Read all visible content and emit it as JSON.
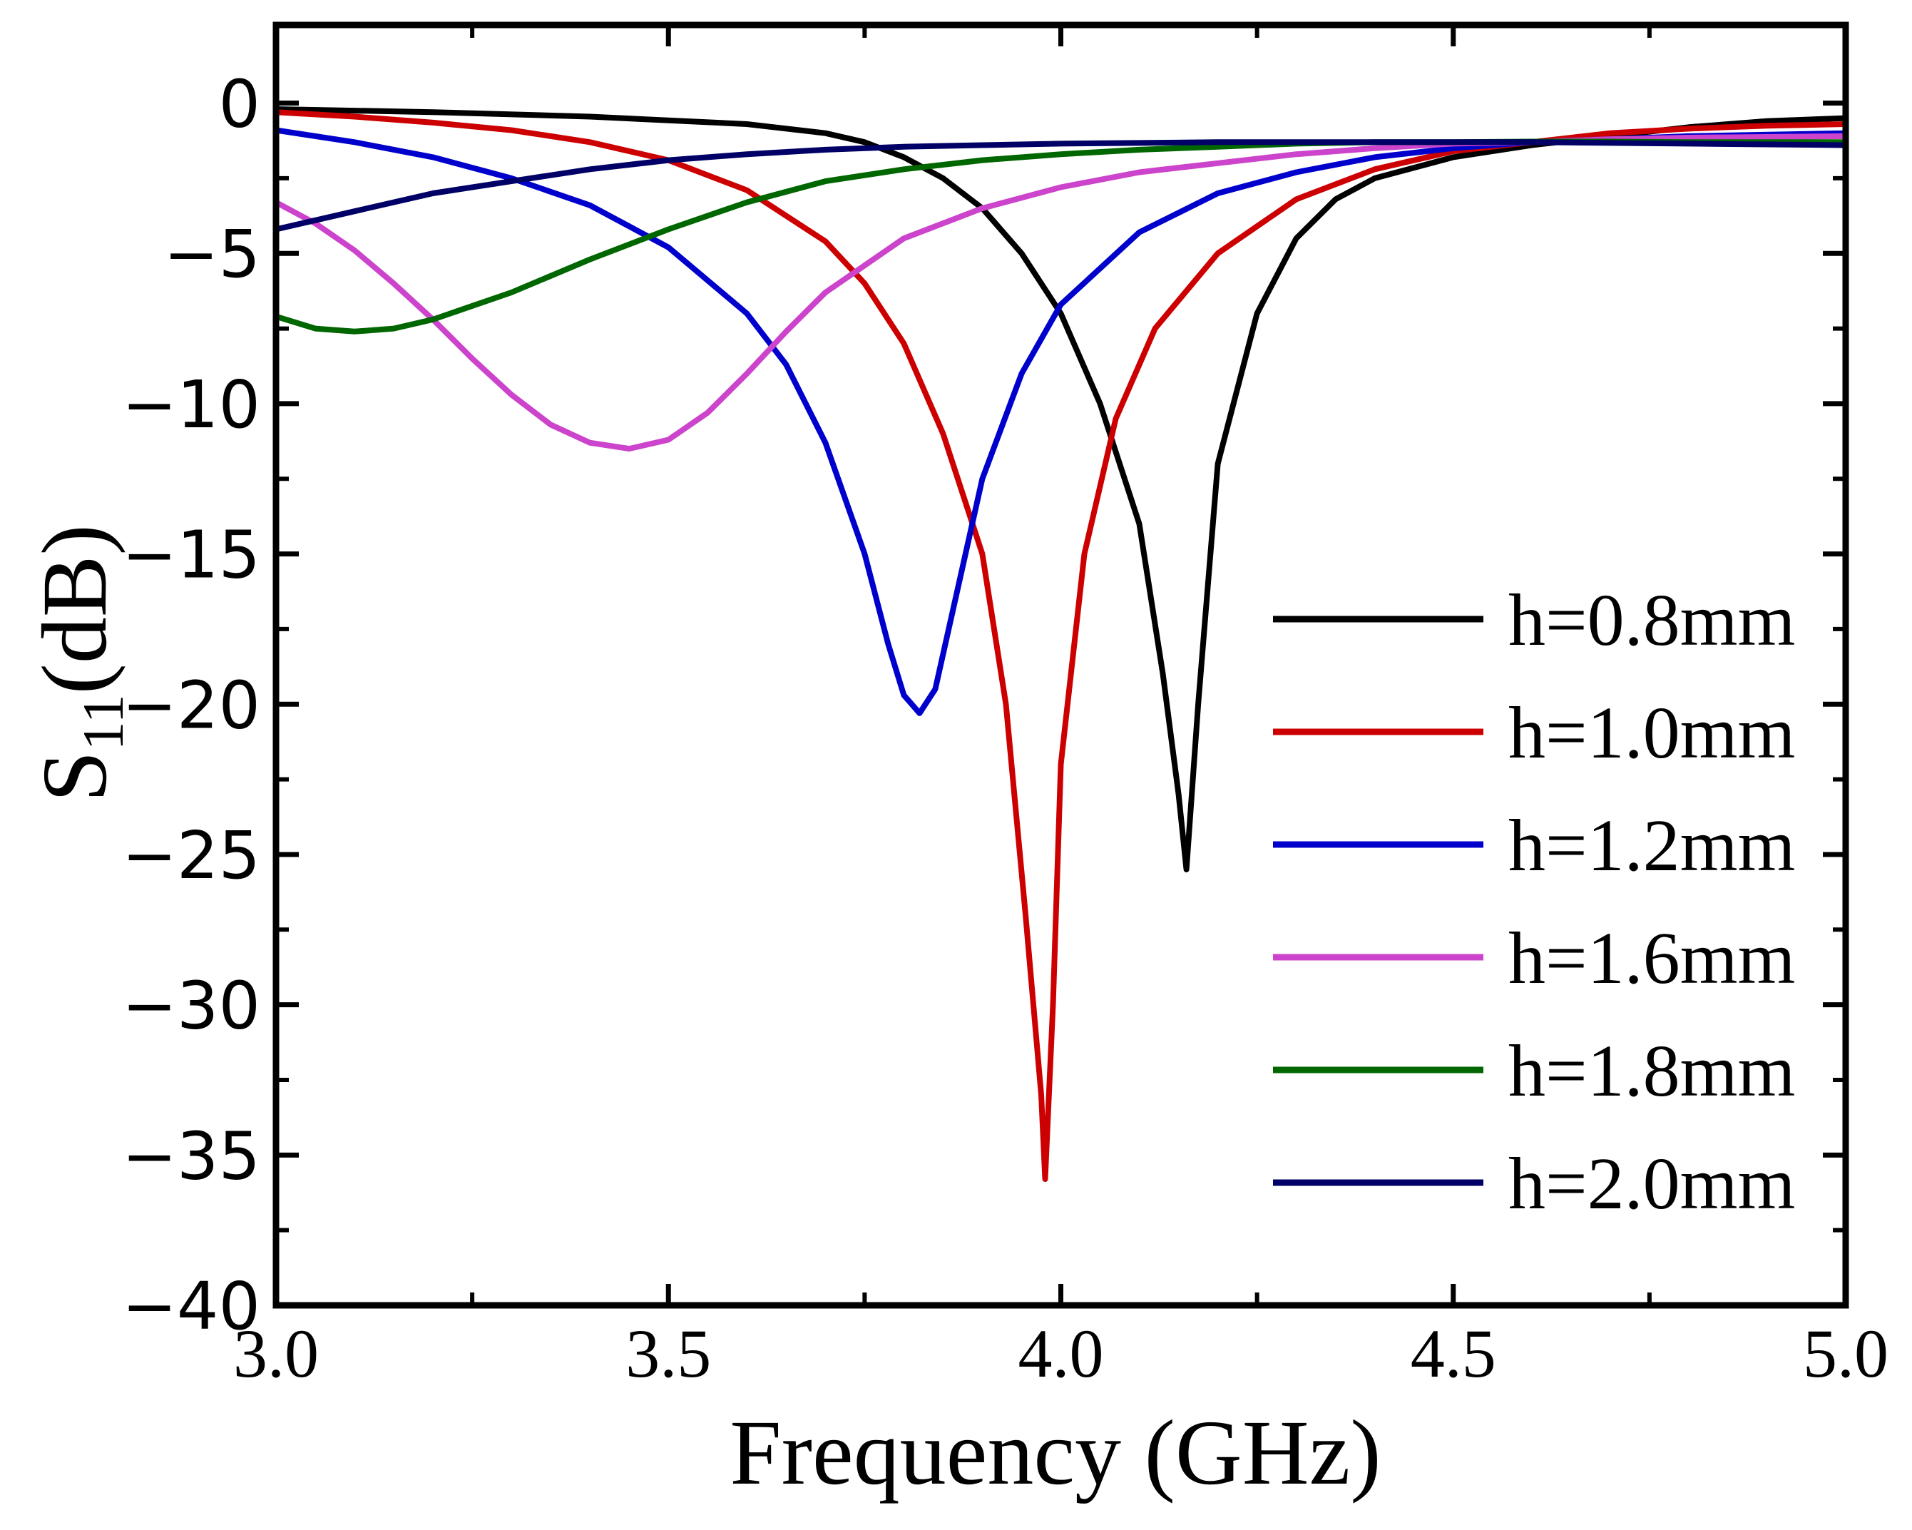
{
  "chart_data": {
    "type": "line",
    "title": "",
    "xlabel": "Frequency (GHz)",
    "ylabel_main": "S",
    "ylabel_sub": "11",
    "ylabel_unit": "(dB)",
    "xlim": [
      3.0,
      5.0
    ],
    "ylim": [
      -40,
      2.6
    ],
    "xticks": [
      3.0,
      3.5,
      4.0,
      4.5,
      5.0
    ],
    "xtick_labels": [
      "3.0",
      "3.5",
      "4.0",
      "4.5",
      "5.0"
    ],
    "yticks": [
      0,
      -5,
      -10,
      -15,
      -20,
      -25,
      -30,
      -35,
      -40
    ],
    "ytick_labels": [
      "0",
      "−5",
      "−10",
      "−15",
      "−20",
      "−25",
      "−30",
      "−35",
      "−40"
    ],
    "legend_position": "lower-right",
    "series": [
      {
        "name": "h=0.8mm",
        "color": "#000000",
        "points": [
          [
            3.0,
            -0.2
          ],
          [
            3.2,
            -0.3
          ],
          [
            3.4,
            -0.45
          ],
          [
            3.6,
            -0.7
          ],
          [
            3.7,
            -1.0
          ],
          [
            3.75,
            -1.3
          ],
          [
            3.8,
            -1.8
          ],
          [
            3.85,
            -2.5
          ],
          [
            3.9,
            -3.5
          ],
          [
            3.95,
            -5.0
          ],
          [
            4.0,
            -7.0
          ],
          [
            4.05,
            -10.0
          ],
          [
            4.1,
            -14.0
          ],
          [
            4.13,
            -19.0
          ],
          [
            4.15,
            -23.0
          ],
          [
            4.16,
            -25.5
          ],
          [
            4.175,
            -20.0
          ],
          [
            4.2,
            -12.0
          ],
          [
            4.25,
            -7.0
          ],
          [
            4.3,
            -4.5
          ],
          [
            4.35,
            -3.2
          ],
          [
            4.4,
            -2.5
          ],
          [
            4.5,
            -1.8
          ],
          [
            4.6,
            -1.4
          ],
          [
            4.7,
            -1.1
          ],
          [
            4.8,
            -0.8
          ],
          [
            4.9,
            -0.6
          ],
          [
            5.0,
            -0.5
          ]
        ]
      },
      {
        "name": "h=1.0mm",
        "color": "#cc0000",
        "points": [
          [
            3.0,
            -0.3
          ],
          [
            3.1,
            -0.45
          ],
          [
            3.2,
            -0.65
          ],
          [
            3.3,
            -0.9
          ],
          [
            3.4,
            -1.3
          ],
          [
            3.5,
            -1.9
          ],
          [
            3.6,
            -2.9
          ],
          [
            3.7,
            -4.6
          ],
          [
            3.75,
            -6.0
          ],
          [
            3.8,
            -8.0
          ],
          [
            3.85,
            -11.0
          ],
          [
            3.9,
            -15.0
          ],
          [
            3.93,
            -20.0
          ],
          [
            3.955,
            -27.0
          ],
          [
            3.975,
            -33.0
          ],
          [
            3.98,
            -35.8
          ],
          [
            3.99,
            -30.0
          ],
          [
            4.0,
            -22.0
          ],
          [
            4.03,
            -15.0
          ],
          [
            4.07,
            -10.5
          ],
          [
            4.12,
            -7.5
          ],
          [
            4.2,
            -5.0
          ],
          [
            4.3,
            -3.2
          ],
          [
            4.4,
            -2.2
          ],
          [
            4.5,
            -1.6
          ],
          [
            4.6,
            -1.3
          ],
          [
            4.7,
            -1.0
          ],
          [
            4.8,
            -0.85
          ],
          [
            4.9,
            -0.75
          ],
          [
            5.0,
            -0.7
          ]
        ]
      },
      {
        "name": "h=1.2mm",
        "color": "#0000cc",
        "points": [
          [
            3.0,
            -0.9
          ],
          [
            3.1,
            -1.3
          ],
          [
            3.2,
            -1.8
          ],
          [
            3.3,
            -2.5
          ],
          [
            3.4,
            -3.4
          ],
          [
            3.5,
            -4.8
          ],
          [
            3.6,
            -7.0
          ],
          [
            3.65,
            -8.7
          ],
          [
            3.7,
            -11.3
          ],
          [
            3.75,
            -15.0
          ],
          [
            3.78,
            -18.0
          ],
          [
            3.8,
            -19.7
          ],
          [
            3.82,
            -20.3
          ],
          [
            3.84,
            -19.5
          ],
          [
            3.87,
            -16.0
          ],
          [
            3.9,
            -12.5
          ],
          [
            3.95,
            -9.0
          ],
          [
            4.0,
            -6.7
          ],
          [
            4.1,
            -4.3
          ],
          [
            4.2,
            -3.0
          ],
          [
            4.3,
            -2.3
          ],
          [
            4.4,
            -1.8
          ],
          [
            4.5,
            -1.5
          ],
          [
            4.6,
            -1.3
          ],
          [
            4.7,
            -1.2
          ],
          [
            4.8,
            -1.1
          ],
          [
            5.0,
            -1.0
          ]
        ]
      },
      {
        "name": "h=1.6mm",
        "color": "#cc44cc",
        "points": [
          [
            3.0,
            -3.3
          ],
          [
            3.05,
            -4.0
          ],
          [
            3.1,
            -4.9
          ],
          [
            3.15,
            -6.0
          ],
          [
            3.2,
            -7.2
          ],
          [
            3.25,
            -8.5
          ],
          [
            3.3,
            -9.7
          ],
          [
            3.35,
            -10.7
          ],
          [
            3.4,
            -11.3
          ],
          [
            3.45,
            -11.5
          ],
          [
            3.5,
            -11.2
          ],
          [
            3.55,
            -10.3
          ],
          [
            3.6,
            -9.0
          ],
          [
            3.65,
            -7.6
          ],
          [
            3.7,
            -6.3
          ],
          [
            3.8,
            -4.5
          ],
          [
            3.9,
            -3.5
          ],
          [
            4.0,
            -2.8
          ],
          [
            4.1,
            -2.3
          ],
          [
            4.2,
            -2.0
          ],
          [
            4.3,
            -1.7
          ],
          [
            4.4,
            -1.5
          ],
          [
            4.5,
            -1.35
          ],
          [
            4.6,
            -1.3
          ],
          [
            4.7,
            -1.2
          ],
          [
            4.8,
            -1.15
          ],
          [
            5.0,
            -1.1
          ]
        ]
      },
      {
        "name": "h=1.8mm",
        "color": "#006600",
        "points": [
          [
            3.0,
            -7.1
          ],
          [
            3.05,
            -7.5
          ],
          [
            3.1,
            -7.6
          ],
          [
            3.15,
            -7.5
          ],
          [
            3.2,
            -7.2
          ],
          [
            3.3,
            -6.3
          ],
          [
            3.4,
            -5.2
          ],
          [
            3.5,
            -4.2
          ],
          [
            3.6,
            -3.3
          ],
          [
            3.7,
            -2.6
          ],
          [
            3.8,
            -2.2
          ],
          [
            3.9,
            -1.9
          ],
          [
            4.0,
            -1.7
          ],
          [
            4.1,
            -1.55
          ],
          [
            4.2,
            -1.45
          ],
          [
            4.3,
            -1.35
          ],
          [
            4.4,
            -1.3
          ],
          [
            4.5,
            -1.3
          ],
          [
            4.6,
            -1.28
          ],
          [
            4.7,
            -1.28
          ],
          [
            4.8,
            -1.3
          ],
          [
            5.0,
            -1.3
          ]
        ]
      },
      {
        "name": "h=2.0mm",
        "color": "#000066",
        "points": [
          [
            3.0,
            -4.2
          ],
          [
            3.1,
            -3.6
          ],
          [
            3.2,
            -3.0
          ],
          [
            3.3,
            -2.6
          ],
          [
            3.4,
            -2.2
          ],
          [
            3.5,
            -1.9
          ],
          [
            3.6,
            -1.7
          ],
          [
            3.7,
            -1.55
          ],
          [
            3.8,
            -1.45
          ],
          [
            3.9,
            -1.4
          ],
          [
            4.0,
            -1.35
          ],
          [
            4.2,
            -1.3
          ],
          [
            4.4,
            -1.3
          ],
          [
            4.6,
            -1.3
          ],
          [
            4.8,
            -1.35
          ],
          [
            5.0,
            -1.4
          ]
        ]
      }
    ]
  }
}
